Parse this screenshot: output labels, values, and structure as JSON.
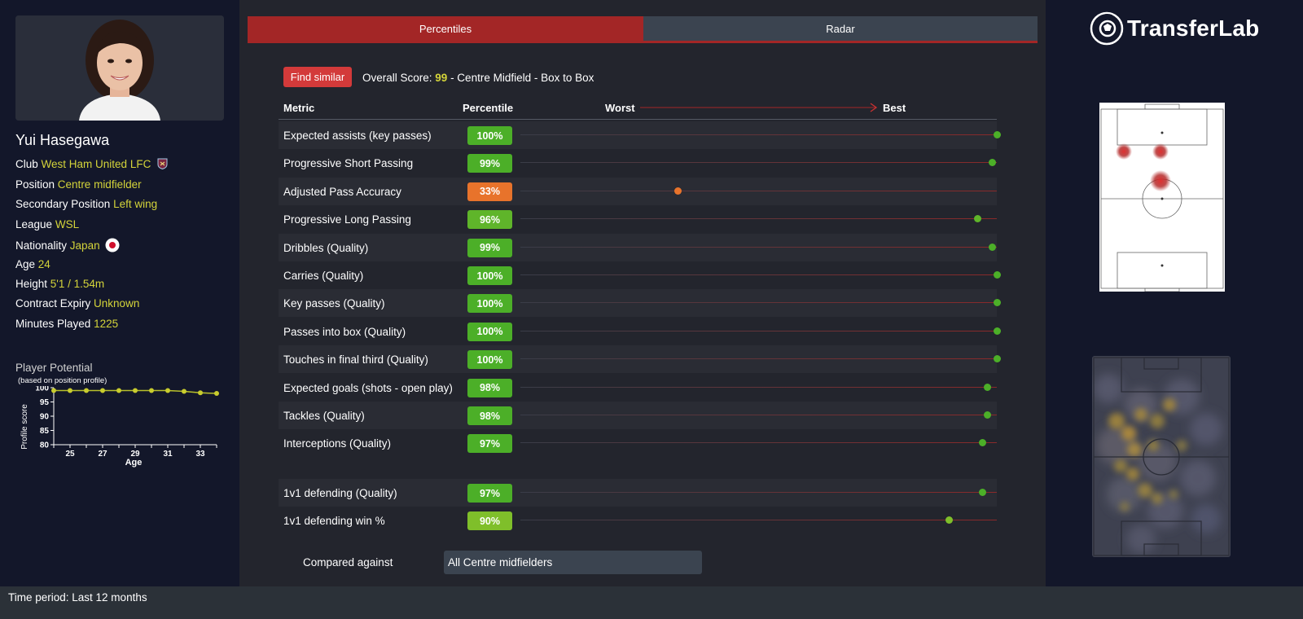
{
  "player": {
    "name": "Yui Hasegawa",
    "info": [
      {
        "label": "Club",
        "value": "West Ham United LFC"
      },
      {
        "label": "Position",
        "value": "Centre midfielder"
      },
      {
        "label": "Secondary Position",
        "value": "Left wing"
      },
      {
        "label": "League",
        "value": "WSL"
      },
      {
        "label": "Nationality",
        "value": "Japan"
      },
      {
        "label": "Age",
        "value": "24"
      },
      {
        "label": "Height",
        "value": "5'1 / 1.54m"
      },
      {
        "label": "Contract Expiry",
        "value": "Unknown"
      },
      {
        "label": "Minutes Played",
        "value": "1225"
      }
    ]
  },
  "potential": {
    "title": "Player Potential",
    "subtitle": "(based on position profile)",
    "ylabel": "Profile score",
    "xlabel": "Age",
    "yticks": [
      "100",
      "95",
      "90",
      "85",
      "80"
    ],
    "xticks": [
      "25",
      "27",
      "29",
      "31",
      "33"
    ]
  },
  "chart_data": {
    "type": "line",
    "x": [
      24,
      25,
      26,
      27,
      28,
      29,
      30,
      31,
      32,
      33,
      34
    ],
    "series": [
      {
        "values": [
          99,
          99,
          99,
          99,
          99,
          99,
          99,
          99,
          98.7,
          98.2,
          98
        ]
      }
    ],
    "xlabel": "Age",
    "ylabel": "Profile score",
    "ylim": [
      80,
      100
    ],
    "xlim": [
      24,
      34
    ]
  },
  "tabs": {
    "percentiles": "Percentiles",
    "radar": "Radar"
  },
  "find_similar": "Find similar",
  "overall": {
    "prefix": "Overall Score: ",
    "score": "99",
    "suffix": " - Centre Midfield - Box to Box"
  },
  "headers": {
    "metric": "Metric",
    "percentile": "Percentile",
    "worst": "Worst",
    "best": "Best"
  },
  "metrics": [
    {
      "name": "Expected assists (key passes)",
      "pct": "100%",
      "value": 100,
      "color": "#4caf28"
    },
    {
      "name": "Progressive Short Passing",
      "pct": "99%",
      "value": 99,
      "color": "#4caf28"
    },
    {
      "name": "Adjusted Pass Accuracy",
      "pct": "33%",
      "value": 33,
      "color": "#e8732b"
    },
    {
      "name": "Progressive Long Passing",
      "pct": "96%",
      "value": 96,
      "color": "#5fb52a"
    },
    {
      "name": "Dribbles (Quality)",
      "pct": "99%",
      "value": 99,
      "color": "#4caf28"
    },
    {
      "name": "Carries (Quality)",
      "pct": "100%",
      "value": 100,
      "color": "#4caf28"
    },
    {
      "name": "Key passes (Quality)",
      "pct": "100%",
      "value": 100,
      "color": "#4caf28"
    },
    {
      "name": "Passes into box (Quality)",
      "pct": "100%",
      "value": 100,
      "color": "#4caf28"
    },
    {
      "name": "Touches in final third (Quality)",
      "pct": "100%",
      "value": 100,
      "color": "#4caf28"
    },
    {
      "name": "Expected goals (shots - open play)",
      "pct": "98%",
      "value": 98,
      "color": "#4caf28"
    },
    {
      "name": "Tackles (Quality)",
      "pct": "98%",
      "value": 98,
      "color": "#4caf28"
    },
    {
      "name": "Interceptions (Quality)",
      "pct": "97%",
      "value": 97,
      "color": "#4caf28"
    }
  ],
  "metrics2": [
    {
      "name": "1v1 defending (Quality)",
      "pct": "97%",
      "value": 97,
      "color": "#4caf28"
    },
    {
      "name": "1v1 defending win %",
      "pct": "90%",
      "value": 90,
      "color": "#7fbf2a"
    }
  ],
  "compared": {
    "label": "Compared against",
    "value": "All Centre midfielders"
  },
  "logo_text": "TransferLab",
  "time_period": "Time period: Last 12 months"
}
